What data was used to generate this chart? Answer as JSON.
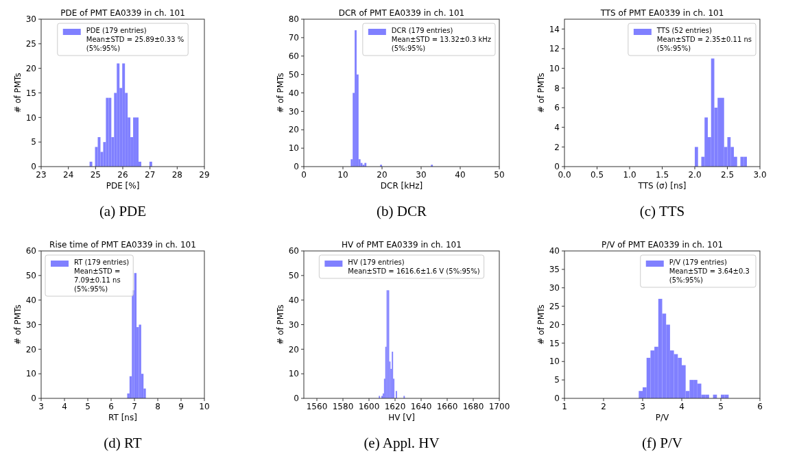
{
  "chart_data": [
    {
      "type": "histogram",
      "title": "PDE of PMT EA0339 in ch. 101",
      "xlabel": "PDE [%]",
      "ylabel": "# of PMTs",
      "annotations": [
        "(a) PDE"
      ],
      "legend": "top",
      "xlim": [
        23,
        29
      ],
      "xticks": [
        23,
        24,
        25,
        26,
        27,
        28,
        29
      ],
      "ylim": [
        0,
        30
      ],
      "yticks": [
        0,
        5,
        10,
        15,
        20,
        25,
        30
      ],
      "bins": [
        24.78,
        24.88,
        24.98,
        25.08,
        25.18,
        25.28,
        25.38,
        25.48,
        25.58,
        25.68,
        25.78,
        25.88,
        25.98,
        26.08,
        26.18,
        26.28,
        26.38,
        26.48,
        26.58,
        26.68,
        26.78,
        26.88,
        26.98,
        27.08
      ],
      "series": [
        {
          "name": "PDE (179 entries)\nMean±STD = 25.89±0.33 % (5%:95%)",
          "color": "#8080ff",
          "values": [
            1,
            0,
            4,
            6,
            3,
            5,
            14,
            14,
            6,
            15,
            21,
            16,
            21,
            15,
            10,
            6,
            10,
            10,
            1,
            0,
            0,
            0,
            1
          ]
        }
      ]
    },
    {
      "type": "histogram",
      "title": "DCR of PMT EA0339 in ch. 101",
      "xlabel": "DCR [kHz]",
      "ylabel": "# of PMTs",
      "annotations": [
        "(b) DCR"
      ],
      "legend": "top right",
      "xlim": [
        0,
        50
      ],
      "xticks": [
        0,
        10,
        20,
        30,
        40,
        50
      ],
      "ylim": [
        0,
        80
      ],
      "yticks": [
        0,
        10,
        20,
        30,
        40,
        50,
        60,
        70,
        80
      ],
      "bins": [
        12,
        12.5,
        13,
        13.5,
        14,
        14.5,
        15,
        15.5,
        16,
        16.5,
        17,
        17.5,
        18,
        18.5,
        19,
        19.5,
        20,
        20.5,
        21,
        21.5,
        22,
        22.5,
        23,
        23.5,
        24,
        24.5,
        25,
        25.5,
        26,
        26.5,
        27,
        27.5,
        28,
        28.5,
        29,
        29.5,
        30,
        30.5,
        31,
        31.5,
        32,
        32.5,
        33
      ],
      "series": [
        {
          "name": "DCR (179 entries)\nMean±STD = 13.32±0.3 kHz (5%:95%)",
          "color": "#8080ff",
          "values": [
            4,
            40,
            74,
            50,
            4,
            2,
            1,
            2,
            0,
            0,
            0,
            0,
            0,
            0,
            0,
            1,
            0,
            0,
            0,
            0,
            0,
            0,
            0,
            0,
            0,
            0,
            0,
            0,
            0,
            0,
            0,
            0,
            0,
            0,
            0,
            0,
            0,
            0,
            0,
            0,
            0,
            1
          ]
        }
      ]
    },
    {
      "type": "histogram",
      "title": "TTS of PMT EA0339 in ch. 101",
      "xlabel": "TTS (σ) [ns]",
      "ylabel": "# of PMTs",
      "annotations": [
        "(c) TTS"
      ],
      "legend": "top right",
      "xlim": [
        0,
        3
      ],
      "xticks": [
        {
          "value": 0,
          "label": "0.0"
        },
        0.5,
        {
          "value": 1,
          "label": "1.0"
        },
        1.5,
        {
          "value": 2,
          "label": "2.0"
        },
        2.5,
        {
          "value": 3,
          "label": "3.0"
        }
      ],
      "ylim": [
        0,
        15
      ],
      "yticks": [
        0,
        2,
        4,
        6,
        8,
        10,
        12,
        14
      ],
      "bins": [
        2,
        2.05,
        2.1,
        2.15,
        2.2,
        2.25,
        2.3,
        2.35,
        2.4,
        2.45,
        2.5,
        2.55,
        2.6,
        2.65,
        2.7,
        2.75,
        2.8
      ],
      "series": [
        {
          "name": "TTS (52 entries)\nMean±STD = 2.35±0.11 ns (5%:95%)",
          "color": "#8080ff",
          "values": [
            2,
            0,
            1,
            5,
            3,
            11,
            6,
            7,
            7,
            2,
            3,
            2,
            1,
            0,
            1,
            1
          ]
        }
      ]
    },
    {
      "type": "histogram",
      "title": "Rise time of PMT EA0339 in ch. 101",
      "xlabel": "RT [ns]",
      "ylabel": "# of PMTs",
      "annotations": [
        "(d) RT"
      ],
      "legend": "top left",
      "xlim": [
        3,
        10
      ],
      "xticks": [
        3,
        4,
        5,
        6,
        7,
        8,
        9,
        10
      ],
      "ylim": [
        0,
        60
      ],
      "yticks": [
        0,
        10,
        20,
        30,
        40,
        50,
        60
      ],
      "bins": [
        6.69,
        6.79,
        6.89,
        6.99,
        7.09,
        7.19,
        7.29,
        7.39,
        7.49
      ],
      "series": [
        {
          "name": "RT (179 entries)\nMean±STD = 7.09±0.11 ns (5%:95%)",
          "color": "#8080ff",
          "values": [
            2,
            9,
            44,
            51,
            29,
            30,
            10,
            4
          ]
        }
      ]
    },
    {
      "type": "histogram",
      "title": "HV of PMT EA0339 in ch. 101",
      "xlabel": "HV [V]",
      "ylabel": "# of PMTs",
      "annotations": [
        "(e) Appl. HV"
      ],
      "legend": "top",
      "xlim": [
        1550,
        1700
      ],
      "xticks": [
        1560,
        1580,
        1600,
        1620,
        1640,
        1660,
        1680,
        1700
      ],
      "ylim": [
        0,
        60
      ],
      "yticks": [
        0,
        10,
        20,
        30,
        40,
        50,
        60
      ],
      "bins": [
        1607.5,
        1608.5,
        1609.5,
        1610.5,
        1611.5,
        1612.5,
        1613.5,
        1614.5,
        1615.5,
        1616.5,
        1617.5,
        1618.5,
        1619.5,
        1620.5,
        1621.5,
        1622.5,
        1623.5,
        1624.5,
        1625.5,
        1626.5,
        1627.5
      ],
      "series": [
        {
          "name": "HV (179 entries)\nMean±STD = 1616.6±1.6 V (5%:95%)",
          "color": "#8080ff",
          "values": [
            1,
            0,
            1,
            2,
            8,
            21,
            44,
            44,
            15,
            12,
            19,
            8,
            0,
            3,
            0,
            0,
            0,
            0,
            0,
            1
          ]
        }
      ]
    },
    {
      "type": "histogram",
      "title": "P/V of PMT EA0339 in ch. 101",
      "xlabel": "P/V",
      "ylabel": "# of PMTs",
      "annotations": [
        "(f) P/V"
      ],
      "legend": "top right",
      "xlim": [
        1,
        6
      ],
      "xticks": [
        1,
        2,
        3,
        4,
        5,
        6
      ],
      "ylim": [
        0,
        40
      ],
      "yticks": [
        0,
        5,
        10,
        15,
        20,
        25,
        30,
        35,
        40
      ],
      "bins": [
        2.9,
        3,
        3.1,
        3.2,
        3.3,
        3.4,
        3.5,
        3.6,
        3.7,
        3.8,
        3.9,
        4,
        4.1,
        4.2,
        4.3,
        4.4,
        4.5,
        4.6,
        4.7,
        4.8,
        4.9,
        5,
        5.1,
        5.2
      ],
      "series": [
        {
          "name": "P/V (179 entries)\nMean±STD = 3.64±0.3  (5%:95%)",
          "color": "#8080ff",
          "values": [
            2,
            3,
            11,
            13,
            14,
            27,
            23,
            20,
            13,
            12,
            11,
            9,
            2,
            5,
            5,
            4,
            1,
            1,
            0,
            1,
            0,
            1,
            1
          ]
        }
      ]
    }
  ]
}
